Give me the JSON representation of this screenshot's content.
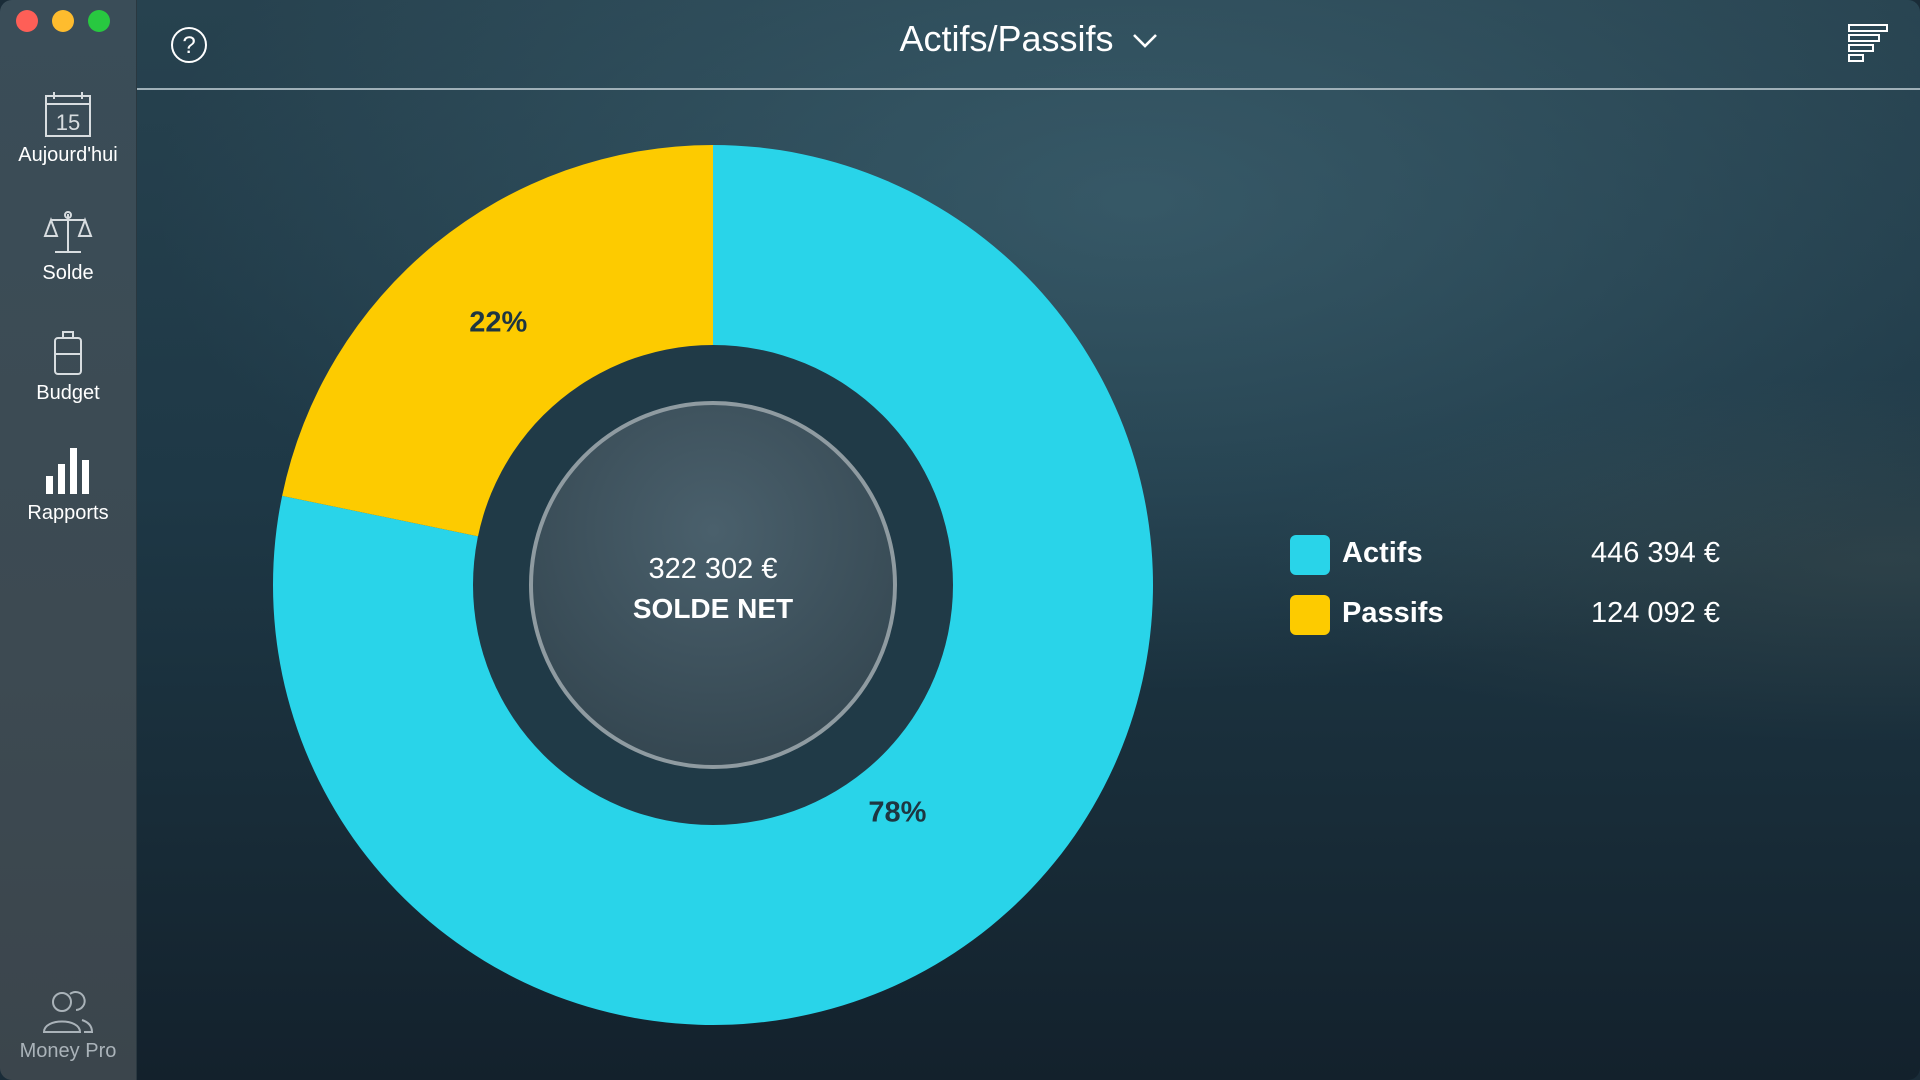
{
  "window": {
    "title": "Actifs/Passifs"
  },
  "sidebar": {
    "items": [
      {
        "label": "Aujourd'hui",
        "icon": "calendar-icon",
        "icon_text": "15"
      },
      {
        "label": "Solde",
        "icon": "balance-scale-icon"
      },
      {
        "label": "Budget",
        "icon": "jar-icon"
      },
      {
        "label": "Rapports",
        "icon": "bar-chart-icon"
      }
    ],
    "footer_label": "Money Pro",
    "footer_icon": "users-icon"
  },
  "toolbar": {
    "help_label": "?",
    "title": "Actifs/Passifs",
    "title_icon": "chevron-down-icon",
    "menu_icon": "list-menu-icon"
  },
  "center": {
    "amount": "322 302 €",
    "label": "SOLDE NET"
  },
  "chart_data": {
    "type": "pie",
    "categories": [
      "Actifs",
      "Passifs"
    ],
    "values": [
      446394,
      124092
    ],
    "display_values": [
      "446 394 €",
      "124 092 €"
    ],
    "percent_labels": [
      "78%",
      "22%"
    ],
    "colors": [
      "#29d4e9",
      "#fdcb00"
    ],
    "legend_placement": "right"
  }
}
